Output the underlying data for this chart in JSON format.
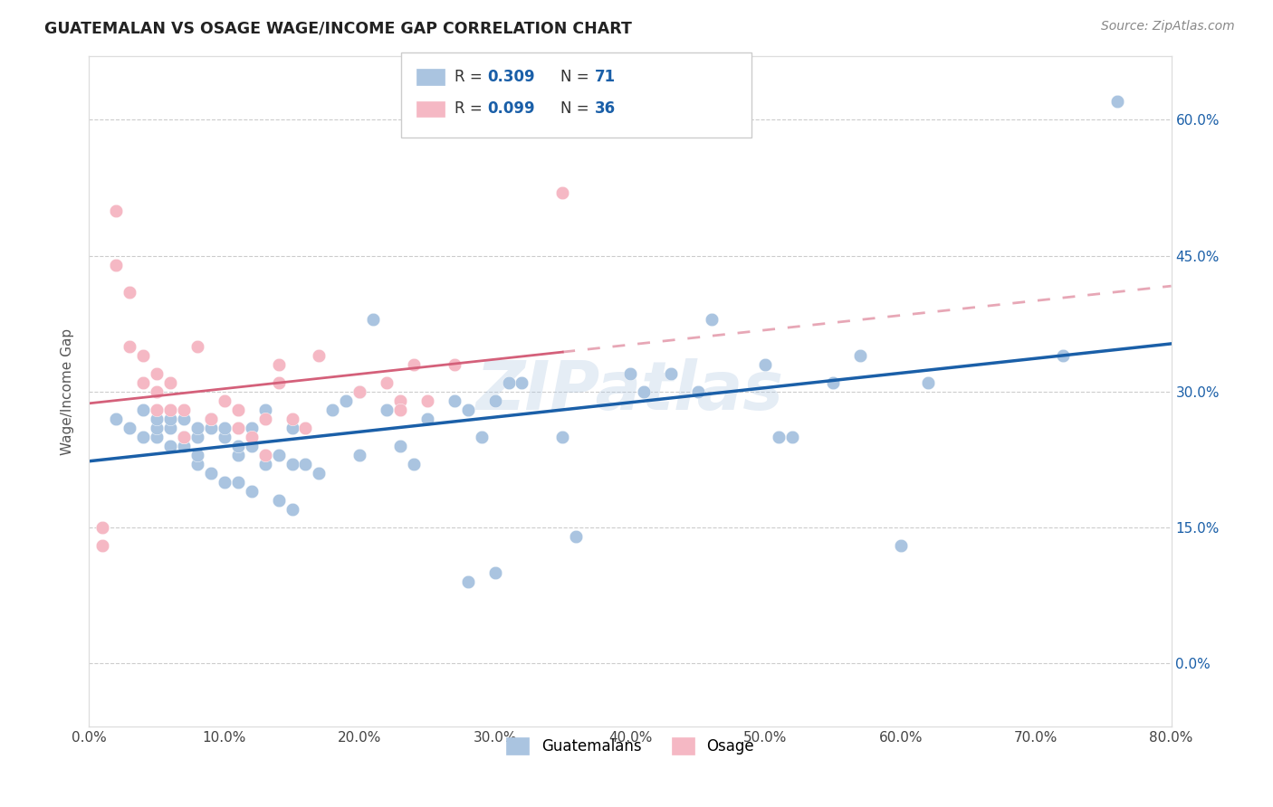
{
  "title": "GUATEMALAN VS OSAGE WAGE/INCOME GAP CORRELATION CHART",
  "source": "Source: ZipAtlas.com",
  "ylabel": "Wage/Income Gap",
  "xmin": 0.0,
  "xmax": 0.8,
  "ymin": -0.07,
  "ymax": 0.67,
  "watermark": "ZIPatlas",
  "legend_blue_R": "0.309",
  "legend_blue_N": "71",
  "legend_pink_R": "0.099",
  "legend_pink_N": "36",
  "blue_color": "#aac4e0",
  "pink_color": "#f5b8c4",
  "blue_line_color": "#1a5fa8",
  "pink_line_color": "#d4607a",
  "x_ticks": [
    0.0,
    0.1,
    0.2,
    0.3,
    0.4,
    0.5,
    0.6,
    0.7,
    0.8
  ],
  "y_ticks": [
    0.0,
    0.15,
    0.3,
    0.45,
    0.6
  ],
  "guatemalan_points_x": [
    0.72,
    0.6,
    0.55,
    0.57,
    0.5,
    0.52,
    0.46,
    0.45,
    0.43,
    0.41,
    0.4,
    0.36,
    0.35,
    0.32,
    0.31,
    0.3,
    0.3,
    0.29,
    0.28,
    0.28,
    0.27,
    0.25,
    0.24,
    0.23,
    0.22,
    0.21,
    0.2,
    0.2,
    0.19,
    0.18,
    0.17,
    0.16,
    0.15,
    0.15,
    0.15,
    0.14,
    0.14,
    0.13,
    0.13,
    0.12,
    0.12,
    0.12,
    0.11,
    0.11,
    0.11,
    0.1,
    0.1,
    0.1,
    0.09,
    0.09,
    0.09,
    0.08,
    0.08,
    0.08,
    0.08,
    0.07,
    0.07,
    0.07,
    0.06,
    0.06,
    0.06,
    0.05,
    0.05,
    0.05,
    0.04,
    0.04,
    0.03,
    0.02,
    0.76,
    0.62,
    0.51
  ],
  "guatemalan_points_y": [
    0.34,
    0.13,
    0.31,
    0.34,
    0.33,
    0.25,
    0.38,
    0.3,
    0.32,
    0.3,
    0.32,
    0.14,
    0.25,
    0.31,
    0.31,
    0.1,
    0.29,
    0.25,
    0.09,
    0.28,
    0.29,
    0.27,
    0.22,
    0.24,
    0.28,
    0.38,
    0.23,
    0.3,
    0.29,
    0.28,
    0.21,
    0.22,
    0.17,
    0.22,
    0.26,
    0.18,
    0.23,
    0.22,
    0.28,
    0.19,
    0.24,
    0.26,
    0.2,
    0.23,
    0.24,
    0.2,
    0.25,
    0.26,
    0.21,
    0.26,
    0.27,
    0.22,
    0.23,
    0.25,
    0.26,
    0.24,
    0.25,
    0.27,
    0.24,
    0.26,
    0.27,
    0.25,
    0.26,
    0.27,
    0.25,
    0.28,
    0.26,
    0.27,
    0.62,
    0.31,
    0.25
  ],
  "osage_points_x": [
    0.01,
    0.01,
    0.02,
    0.02,
    0.03,
    0.03,
    0.04,
    0.04,
    0.05,
    0.05,
    0.05,
    0.06,
    0.06,
    0.07,
    0.07,
    0.08,
    0.09,
    0.1,
    0.11,
    0.11,
    0.12,
    0.13,
    0.13,
    0.14,
    0.14,
    0.15,
    0.16,
    0.17,
    0.2,
    0.22,
    0.23,
    0.23,
    0.24,
    0.25,
    0.27,
    0.35
  ],
  "osage_points_y": [
    0.15,
    0.13,
    0.5,
    0.44,
    0.41,
    0.35,
    0.34,
    0.31,
    0.32,
    0.3,
    0.28,
    0.31,
    0.28,
    0.28,
    0.25,
    0.35,
    0.27,
    0.29,
    0.28,
    0.26,
    0.25,
    0.27,
    0.23,
    0.33,
    0.31,
    0.27,
    0.26,
    0.34,
    0.3,
    0.31,
    0.29,
    0.28,
    0.33,
    0.29,
    0.33,
    0.52
  ]
}
